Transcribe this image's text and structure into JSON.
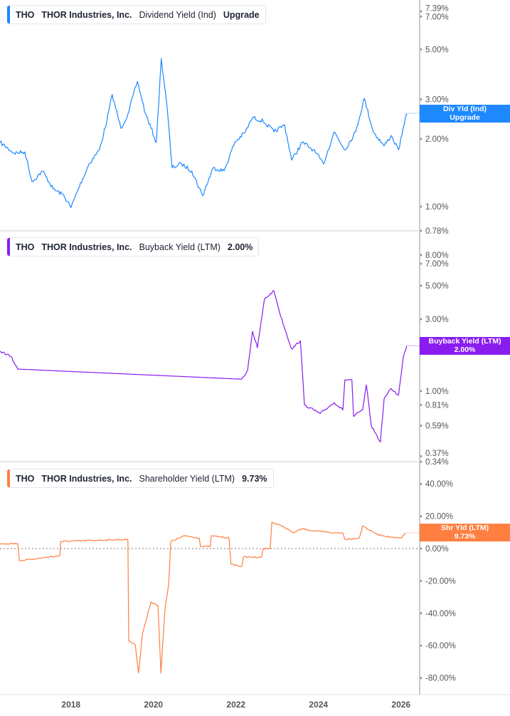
{
  "chart_data": [
    {
      "type": "line",
      "ticker": "THO",
      "company": "THOR Industries, Inc.",
      "metric": "Dividend Yield (Ind)",
      "value_label": "Upgrade",
      "badge_lines": [
        "Div Yld (Ind)",
        "Upgrade"
      ],
      "color": "#1E88FF",
      "yscale": "log",
      "ylim": [
        0.78,
        7.39
      ],
      "yticks": [
        "7.39%",
        "7.00%",
        "5.00%",
        "3.00%",
        "2.00%",
        "1.00%",
        "0.78%"
      ],
      "ytick_values": [
        7.39,
        7.0,
        5.0,
        3.0,
        2.0,
        1.0,
        0.78
      ],
      "points": [
        [
          2016.28,
          1.93
        ],
        [
          2016.62,
          1.73
        ],
        [
          2016.88,
          1.75
        ],
        [
          2017.06,
          1.29
        ],
        [
          2017.31,
          1.44
        ],
        [
          2017.57,
          1.2
        ],
        [
          2017.83,
          1.12
        ],
        [
          2018.0,
          0.99
        ],
        [
          2018.18,
          1.2
        ],
        [
          2018.44,
          1.55
        ],
        [
          2018.69,
          1.79
        ],
        [
          2018.87,
          2.4
        ],
        [
          2019.0,
          3.15
        ],
        [
          2019.21,
          2.23
        ],
        [
          2019.38,
          2.58
        ],
        [
          2019.61,
          3.6
        ],
        [
          2019.81,
          2.58
        ],
        [
          2020.07,
          1.93
        ],
        [
          2020.19,
          4.56
        ],
        [
          2020.33,
          2.78
        ],
        [
          2020.45,
          1.49
        ],
        [
          2020.68,
          1.55
        ],
        [
          2020.93,
          1.44
        ],
        [
          2021.19,
          1.12
        ],
        [
          2021.45,
          1.49
        ],
        [
          2021.71,
          1.44
        ],
        [
          2021.97,
          1.93
        ],
        [
          2022.23,
          2.15
        ],
        [
          2022.4,
          2.49
        ],
        [
          2022.66,
          2.4
        ],
        [
          2022.92,
          2.15
        ],
        [
          2023.18,
          2.31
        ],
        [
          2023.35,
          1.61
        ],
        [
          2023.61,
          1.93
        ],
        [
          2023.87,
          1.79
        ],
        [
          2024.12,
          1.55
        ],
        [
          2024.38,
          2.15
        ],
        [
          2024.64,
          1.79
        ],
        [
          2024.9,
          2.15
        ],
        [
          2025.11,
          3.03
        ],
        [
          2025.33,
          2.15
        ],
        [
          2025.59,
          1.86
        ],
        [
          2025.76,
          2.07
        ],
        [
          2025.94,
          1.79
        ],
        [
          2026.02,
          2.07
        ],
        [
          2026.14,
          2.6
        ]
      ]
    },
    {
      "type": "line",
      "ticker": "THO",
      "company": "THOR Industries, Inc.",
      "metric": "Buyback Yield (LTM)",
      "value_label": "2.00%",
      "badge_lines": [
        "Buyback Yield (LTM)",
        "2.00%"
      ],
      "color": "#8A1CF0",
      "yscale": "log",
      "ylim": [
        0.34,
        9.5
      ],
      "yticks": [
        "8.00%",
        "7.00%",
        "5.00%",
        "3.00%",
        "1.00%",
        "0.81%",
        "0.59%",
        "0.37%",
        "0.34%"
      ],
      "ytick_values": [
        8.0,
        7.0,
        5.0,
        3.0,
        1.0,
        0.81,
        0.59,
        0.37,
        0.34
      ],
      "points": [
        [
          2016.28,
          1.84
        ],
        [
          2016.54,
          1.7
        ],
        [
          2016.71,
          1.4
        ],
        [
          2022.14,
          1.2
        ],
        [
          2022.28,
          1.37
        ],
        [
          2022.4,
          2.49
        ],
        [
          2022.52,
          1.94
        ],
        [
          2022.69,
          4.07
        ],
        [
          2022.92,
          4.63
        ],
        [
          2023.09,
          3.1
        ],
        [
          2023.35,
          1.9
        ],
        [
          2023.56,
          2.16
        ],
        [
          2023.66,
          0.81
        ],
        [
          2024.04,
          0.71
        ],
        [
          2024.38,
          0.84
        ],
        [
          2024.59,
          0.75
        ],
        [
          2024.64,
          1.19
        ],
        [
          2024.81,
          1.19
        ],
        [
          2024.85,
          0.68
        ],
        [
          2025.07,
          0.75
        ],
        [
          2025.16,
          1.1
        ],
        [
          2025.28,
          0.59
        ],
        [
          2025.5,
          0.46
        ],
        [
          2025.59,
          0.89
        ],
        [
          2025.76,
          1.04
        ],
        [
          2025.94,
          0.94
        ],
        [
          2026.06,
          1.7
        ],
        [
          2026.14,
          2.0
        ]
      ]
    },
    {
      "type": "line",
      "ticker": "THO",
      "company": "THOR Industries, Inc.",
      "metric": "Shareholder Yield (LTM)",
      "value_label": "9.73%",
      "badge_lines": [
        "Shr Yld (LTM)",
        "9.73%"
      ],
      "color": "#FF7F40",
      "yscale": "linear",
      "ylim": [
        -88,
        52
      ],
      "yticks": [
        "40.00%",
        "20.00%",
        "0.00%",
        "-20.00%",
        "-40.00%",
        "-60.00%",
        "-80.00%"
      ],
      "ytick_values": [
        40,
        20,
        0,
        -20,
        -40,
        -60,
        -80
      ],
      "zero_line": true,
      "points": [
        [
          2016.28,
          3.1
        ],
        [
          2016.71,
          3.1
        ],
        [
          2016.75,
          -7.5
        ],
        [
          2017.73,
          -4.4
        ],
        [
          2017.75,
          4.4
        ],
        [
          2019.38,
          5.7
        ],
        [
          2019.4,
          -57
        ],
        [
          2019.56,
          -59.5
        ],
        [
          2019.64,
          -77
        ],
        [
          2019.73,
          -53
        ],
        [
          2019.94,
          -33
        ],
        [
          2020.11,
          -35
        ],
        [
          2020.18,
          -77
        ],
        [
          2020.28,
          -37.4
        ],
        [
          2020.37,
          -22
        ],
        [
          2020.42,
          4.4
        ],
        [
          2020.76,
          7.9
        ],
        [
          2021.11,
          6.6
        ],
        [
          2021.14,
          1.3
        ],
        [
          2021.38,
          1.3
        ],
        [
          2021.4,
          7.9
        ],
        [
          2021.83,
          6.6
        ],
        [
          2021.88,
          -9.7
        ],
        [
          2022.14,
          -11
        ],
        [
          2022.18,
          -5.3
        ],
        [
          2022.62,
          -5.3
        ],
        [
          2022.66,
          0
        ],
        [
          2022.83,
          0
        ],
        [
          2022.87,
          16.3
        ],
        [
          2023.18,
          13.2
        ],
        [
          2023.38,
          9.7
        ],
        [
          2023.61,
          12.3
        ],
        [
          2023.87,
          11
        ],
        [
          2024.38,
          9.7
        ],
        [
          2024.59,
          9.7
        ],
        [
          2024.64,
          5.7
        ],
        [
          2024.99,
          6.6
        ],
        [
          2025.07,
          14
        ],
        [
          2025.42,
          8.8
        ],
        [
          2025.85,
          6.6
        ],
        [
          2026.02,
          6.6
        ],
        [
          2026.11,
          9.73
        ]
      ]
    }
  ],
  "x_axis": {
    "ticks": [
      "2018",
      "2020",
      "2022",
      "2024",
      "2026"
    ],
    "tick_values": [
      2018,
      2020,
      2022,
      2024,
      2026
    ]
  }
}
